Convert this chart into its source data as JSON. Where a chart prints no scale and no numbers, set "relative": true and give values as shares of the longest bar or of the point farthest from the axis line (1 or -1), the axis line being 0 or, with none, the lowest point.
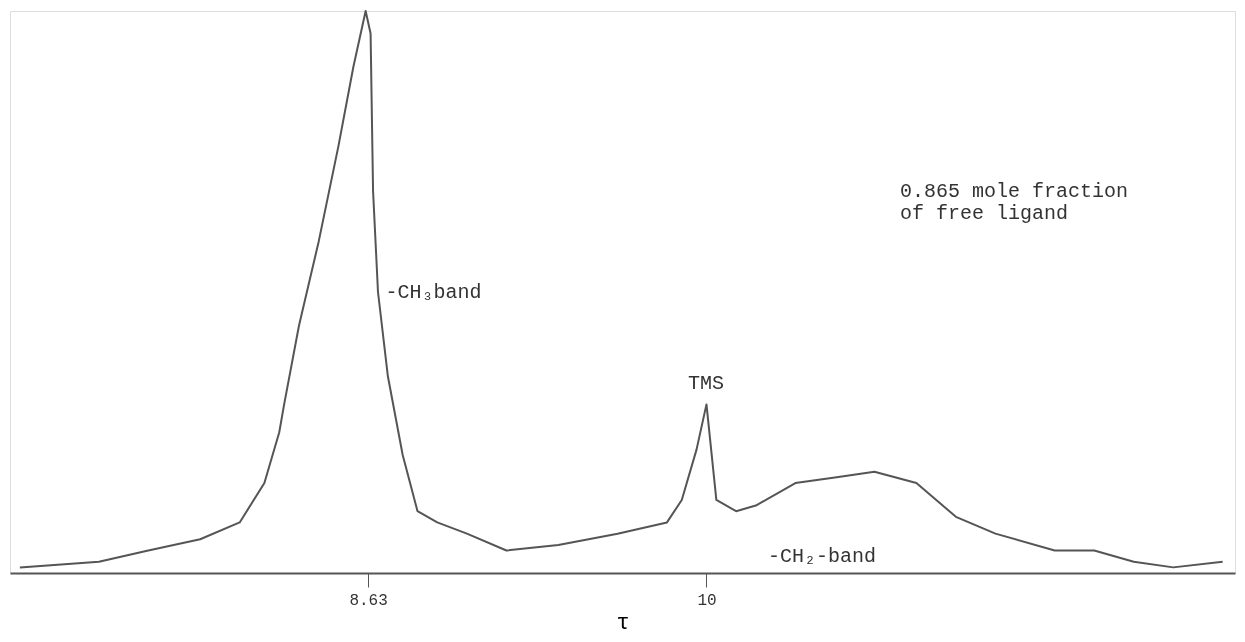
{
  "chart_data": {
    "type": "line",
    "relative": true,
    "xlabel": "τ",
    "x": [
      7.22,
      7.54,
      7.74,
      7.95,
      8.11,
      8.21,
      8.27,
      8.29,
      8.35,
      8.43,
      8.51,
      8.57,
      8.62,
      8.64,
      8.65,
      8.67,
      8.71,
      8.77,
      8.83,
      8.91,
      9.03,
      9.19,
      9.4,
      9.64,
      9.84,
      9.9,
      9.96,
      10.0,
      10.04,
      10.12,
      10.2,
      10.36,
      10.52,
      10.68,
      10.85,
      11.01,
      11.17,
      11.41,
      11.57,
      11.73,
      11.89,
      12.09
    ],
    "series": [
      {
        "color": "#555555",
        "values": [
          0.01,
          0.02,
          0.04,
          0.06,
          0.09,
          0.16,
          0.25,
          0.3,
          0.44,
          0.59,
          0.76,
          0.9,
          1.0,
          0.96,
          0.68,
          0.5,
          0.35,
          0.21,
          0.11,
          0.09,
          0.07,
          0.04,
          0.05,
          0.07,
          0.09,
          0.13,
          0.22,
          0.3,
          0.13,
          0.11,
          0.12,
          0.16,
          0.17,
          0.18,
          0.16,
          0.1,
          0.07,
          0.04,
          0.04,
          0.02,
          0.01,
          0.02
        ]
      }
    ],
    "xlim": [
      7.18,
      12.14
    ],
    "xticks": [
      8.63,
      10
    ],
    "grid": false,
    "line_style": "solid",
    "marker": "none",
    "annotations": [
      {
        "text": "-CH₃band",
        "x": 8.66,
        "y": 0.5
      },
      "TMS",
      "-CH₂-band",
      "0.865 mole fraction\nof free ligand"
    ]
  }
}
